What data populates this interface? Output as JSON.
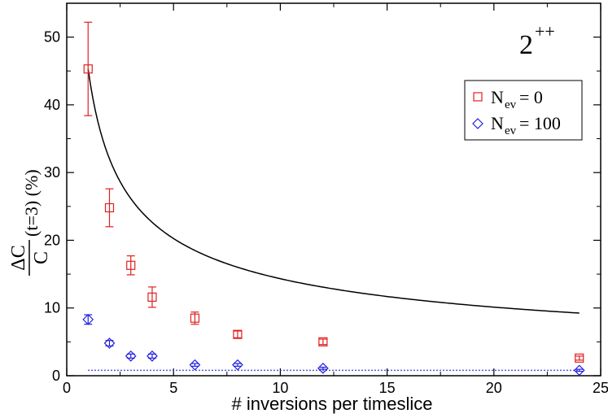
{
  "chart_data": {
    "type": "scatter",
    "xlabel": "# inversions per timeslice",
    "ylabel": {
      "fraction_numerator": "ΔC",
      "fraction_denominator": "C",
      "suffix": "(t=3) (%)"
    },
    "annotation": {
      "base": "2",
      "superscript": "++",
      "position": "top-right"
    },
    "xlim": [
      0,
      25
    ],
    "ylim": [
      0,
      55
    ],
    "xticks": [
      0,
      5,
      10,
      15,
      20,
      25
    ],
    "yticks": [
      0,
      10,
      20,
      30,
      40,
      50
    ],
    "legend": {
      "position": "upper-right",
      "entries": [
        {
          "label_main": "N",
          "label_sub": "ev",
          "label_rest": "= 0",
          "series": "nev0"
        },
        {
          "label_main": "N",
          "label_sub": "ev",
          "label_rest": "= 100",
          "series": "nev100"
        }
      ]
    },
    "series": [
      {
        "id": "nev0",
        "name": "Nev = 0",
        "marker": "square",
        "color": "#e02020",
        "x": [
          1,
          2,
          3,
          4,
          6,
          8,
          12,
          24
        ],
        "y": [
          45.3,
          24.8,
          16.3,
          11.6,
          8.5,
          6.1,
          5.0,
          2.6
        ],
        "yerr": [
          6.9,
          2.8,
          1.4,
          1.5,
          0.9,
          0.5,
          0.4,
          0.3
        ]
      },
      {
        "id": "nev100",
        "name": "Nev = 100",
        "marker": "diamond",
        "color": "#2020e0",
        "x": [
          1,
          2,
          3,
          4,
          6,
          8,
          12,
          24
        ],
        "y": [
          8.3,
          4.8,
          2.9,
          2.9,
          1.6,
          1.6,
          1.1,
          0.8
        ],
        "yerr": [
          0.7,
          0.4,
          0.3,
          0.3,
          0.2,
          0.2,
          0.15,
          0.15
        ]
      }
    ],
    "curve": {
      "name": "1/sqrt(n) reference",
      "style": "solid",
      "color": "#000000",
      "formula": "y = 45.3 / sqrt(x)",
      "x_range": [
        1,
        24
      ],
      "coefficient": 45.3
    },
    "baseline": {
      "style": "dotted",
      "color": "#2020e0",
      "y": 0.8,
      "x_range": [
        1,
        24
      ]
    }
  }
}
